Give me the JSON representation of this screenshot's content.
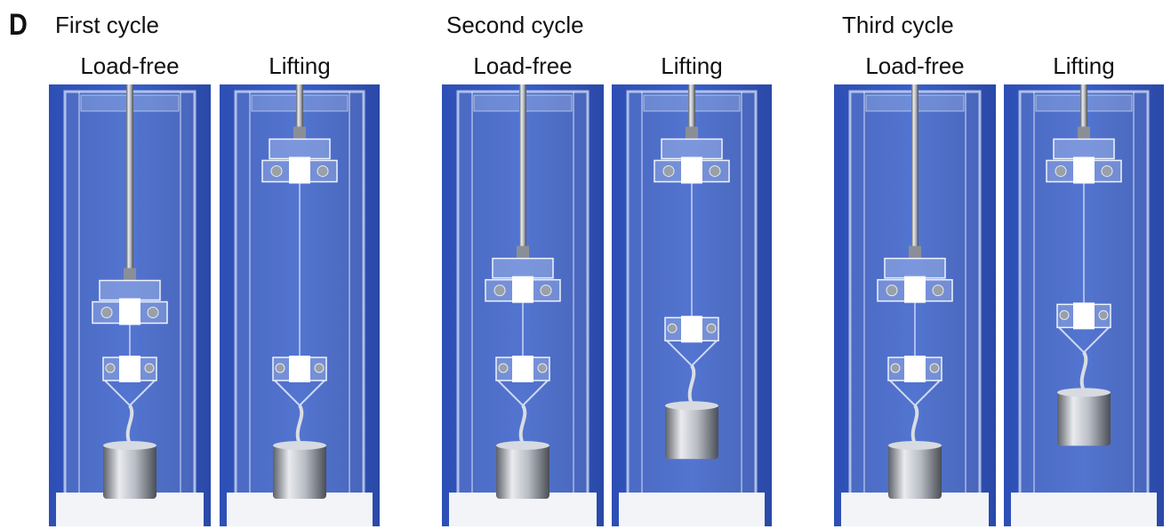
{
  "panel_letter": "D",
  "cycles": [
    {
      "title": "First cycle",
      "columns": [
        {
          "label": "Load-free",
          "weight_lifted": false,
          "upper_clamp_level": 0.5,
          "weight_level": 0.08
        },
        {
          "label": "Lifting",
          "weight_lifted": true,
          "upper_clamp_level": 0.82,
          "weight_level": 0.08
        }
      ]
    },
    {
      "title": "Second cycle",
      "columns": [
        {
          "label": "Load-free",
          "weight_lifted": false,
          "upper_clamp_level": 0.55,
          "weight_level": 0.08
        },
        {
          "label": "Lifting",
          "weight_lifted": true,
          "upper_clamp_level": 0.82,
          "weight_level": 0.17
        }
      ]
    },
    {
      "title": "Third cycle",
      "columns": [
        {
          "label": "Load-free",
          "weight_lifted": false,
          "upper_clamp_level": 0.55,
          "weight_level": 0.08
        },
        {
          "label": "Lifting",
          "weight_lifted": true,
          "upper_clamp_level": 0.82,
          "weight_level": 0.2
        }
      ]
    }
  ],
  "colors": {
    "background": "#ffffff",
    "backdrop_blue": "#3a5fc8",
    "acrylic": "#c9d8f5",
    "steel": "#b8bcc4",
    "base": "#f2f4f7"
  }
}
